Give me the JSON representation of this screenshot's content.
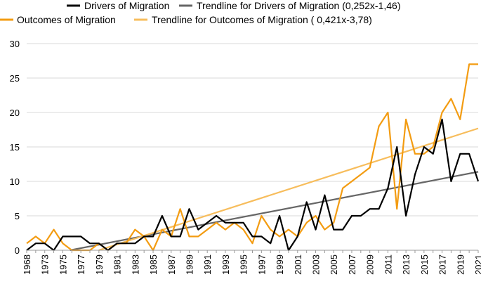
{
  "chart_data": {
    "type": "line",
    "title": "",
    "xlabel": "",
    "ylabel": "",
    "ylim": [
      0,
      30
    ],
    "yticks": [
      "0",
      "5",
      "10",
      "15",
      "20",
      "25",
      "30"
    ],
    "grid": "horizontal",
    "legend_position": "top",
    "x": [
      1968,
      1969,
      1973,
      1974,
      1975,
      1976,
      1977,
      1978,
      1979,
      1980,
      1981,
      1982,
      1983,
      1984,
      1985,
      1986,
      1987,
      1988,
      1989,
      1990,
      1991,
      1992,
      1993,
      1994,
      1995,
      1996,
      1997,
      1998,
      1999,
      2000,
      2001,
      2002,
      2003,
      2004,
      2005,
      2006,
      2007,
      2008,
      2009,
      2010,
      2011,
      2012,
      2013,
      2014,
      2015,
      2016,
      2017,
      2018,
      2019,
      2020,
      2021
    ],
    "xtick_labels": [
      "1968",
      "1973",
      "1975",
      "1977",
      "1979",
      "1981",
      "1983",
      "1985",
      "1987",
      "1989",
      "1991",
      "1993",
      "1995",
      "1997",
      "1999",
      "2001",
      "2003",
      "2005",
      "2007",
      "2009",
      "2011",
      "2013",
      "2015",
      "2017",
      "2019",
      "2021"
    ],
    "series": [
      {
        "name": "Drivers of Migration",
        "color": "#000000",
        "values": [
          0,
          1,
          1,
          0,
          2,
          2,
          2,
          1,
          1,
          0,
          1,
          1,
          1,
          2,
          2,
          5,
          2,
          2,
          6,
          3,
          4,
          5,
          4,
          4,
          4,
          2,
          2,
          1,
          5,
          0,
          2,
          7,
          3,
          8,
          3,
          3,
          5,
          5,
          6,
          6,
          9,
          15,
          5,
          11,
          15,
          14,
          19,
          10,
          14,
          14,
          10
        ]
      },
      {
        "name": "Outcomes of Migration",
        "color": "#f39c12",
        "values": [
          1,
          2,
          1,
          3,
          1,
          0,
          0,
          0,
          1,
          0,
          1,
          1,
          3,
          2,
          0,
          3,
          2,
          6,
          2,
          2,
          3,
          4,
          3,
          4,
          3,
          1,
          5,
          3,
          2,
          3,
          2,
          4,
          5,
          3,
          4,
          9,
          10,
          11,
          12,
          18,
          20,
          6,
          19,
          14,
          14,
          15,
          20,
          22,
          19,
          27,
          27
        ]
      }
    ],
    "trendlines": [
      {
        "name": "Trendline for Drivers of Migration (0,252x-1,46)",
        "color": "#666666",
        "slope": 0.252,
        "intercept": -1.46
      },
      {
        "name": "Trendline for Outcomes of Migration ( 0,421x-3,78)",
        "color": "#f7bd5c",
        "slope": 0.421,
        "intercept": -3.78
      }
    ]
  }
}
